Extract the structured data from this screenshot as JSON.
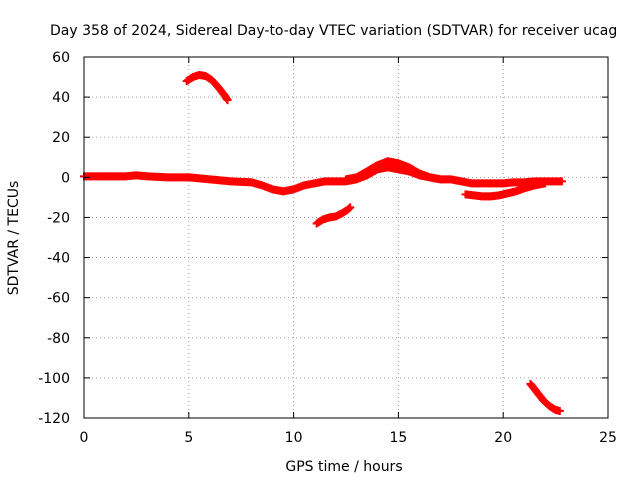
{
  "chart_data": {
    "type": "scatter",
    "title": "Day 358 of 2024, Sidereal Day-to-day VTEC variation (SDTVAR) for receiver ucag",
    "xlabel": "GPS time / hours",
    "ylabel": "SDTVAR / TECUs",
    "xlim": [
      0,
      25
    ],
    "ylim": [
      -120,
      60
    ],
    "xticks": [
      "0",
      "5",
      "10",
      "15",
      "20",
      "25"
    ],
    "yticks": [
      "-120",
      "-100",
      "-80",
      "-60",
      "-40",
      "-20",
      "0",
      "20",
      "40",
      "60"
    ],
    "grid": true,
    "marker": "+",
    "series": [
      {
        "name": "main band",
        "color": "#ff0000",
        "x": [
          0,
          1,
          2,
          2.5,
          3,
          4,
          5,
          6,
          7,
          8,
          8.5,
          9,
          9.5,
          10,
          10.5,
          11,
          11.5,
          12,
          12.5,
          13,
          13.5,
          14,
          14.5,
          15,
          15.5,
          16,
          16.5,
          17,
          17.5,
          18,
          18.5,
          19,
          19.5,
          20,
          20.5,
          21,
          21.5,
          22,
          22.5,
          22.8
        ],
        "y": [
          0.5,
          0.5,
          0.5,
          1,
          0.5,
          0,
          0,
          -1,
          -2,
          -2.5,
          -4,
          -6,
          -7,
          -6,
          -4,
          -3,
          -2,
          -2,
          -2,
          -1,
          1,
          4,
          5,
          4,
          3,
          1,
          0,
          -1,
          -1,
          -2,
          -3,
          -3,
          -3,
          -3,
          -2.5,
          -2.5,
          -2,
          -2,
          -2,
          -2
        ]
      },
      {
        "name": "main band upper",
        "color": "#ff0000",
        "x": [
          12.5,
          13,
          13.5,
          14,
          14.5,
          15,
          15.5,
          16,
          16.5,
          17
        ],
        "y": [
          -1,
          0,
          3,
          6,
          8,
          7,
          5,
          2,
          0,
          -1
        ]
      },
      {
        "name": "lower arc",
        "color": "#ff0000",
        "x": [
          18.2,
          18.6,
          19,
          19.4,
          19.8,
          20.2,
          20.6,
          21,
          21.5,
          22
        ],
        "y": [
          -8.5,
          -9,
          -9.5,
          -9.5,
          -9,
          -8,
          -7,
          -5.5,
          -4,
          -3
        ]
      },
      {
        "name": "high arc",
        "color": "#ff0000",
        "x": [
          4.9,
          5.2,
          5.5,
          5.8,
          6.1,
          6.4,
          6.7,
          6.85
        ],
        "y": [
          48,
          50,
          51,
          50.5,
          48.5,
          45,
          41,
          38.5
        ]
      },
      {
        "name": "mid negative arc",
        "color": "#ff0000",
        "x": [
          11.1,
          11.4,
          11.7,
          12,
          12.3,
          12.6,
          12.7
        ],
        "y": [
          -23,
          -21,
          -20,
          -19.5,
          -18,
          -16,
          -15
        ]
      },
      {
        "name": "deep negative arc",
        "color": "#ff0000",
        "x": [
          21.3,
          21.6,
          21.9,
          22.2,
          22.5,
          22.7
        ],
        "y": [
          -103,
          -107,
          -111,
          -114,
          -116,
          -116.5
        ]
      }
    ]
  }
}
